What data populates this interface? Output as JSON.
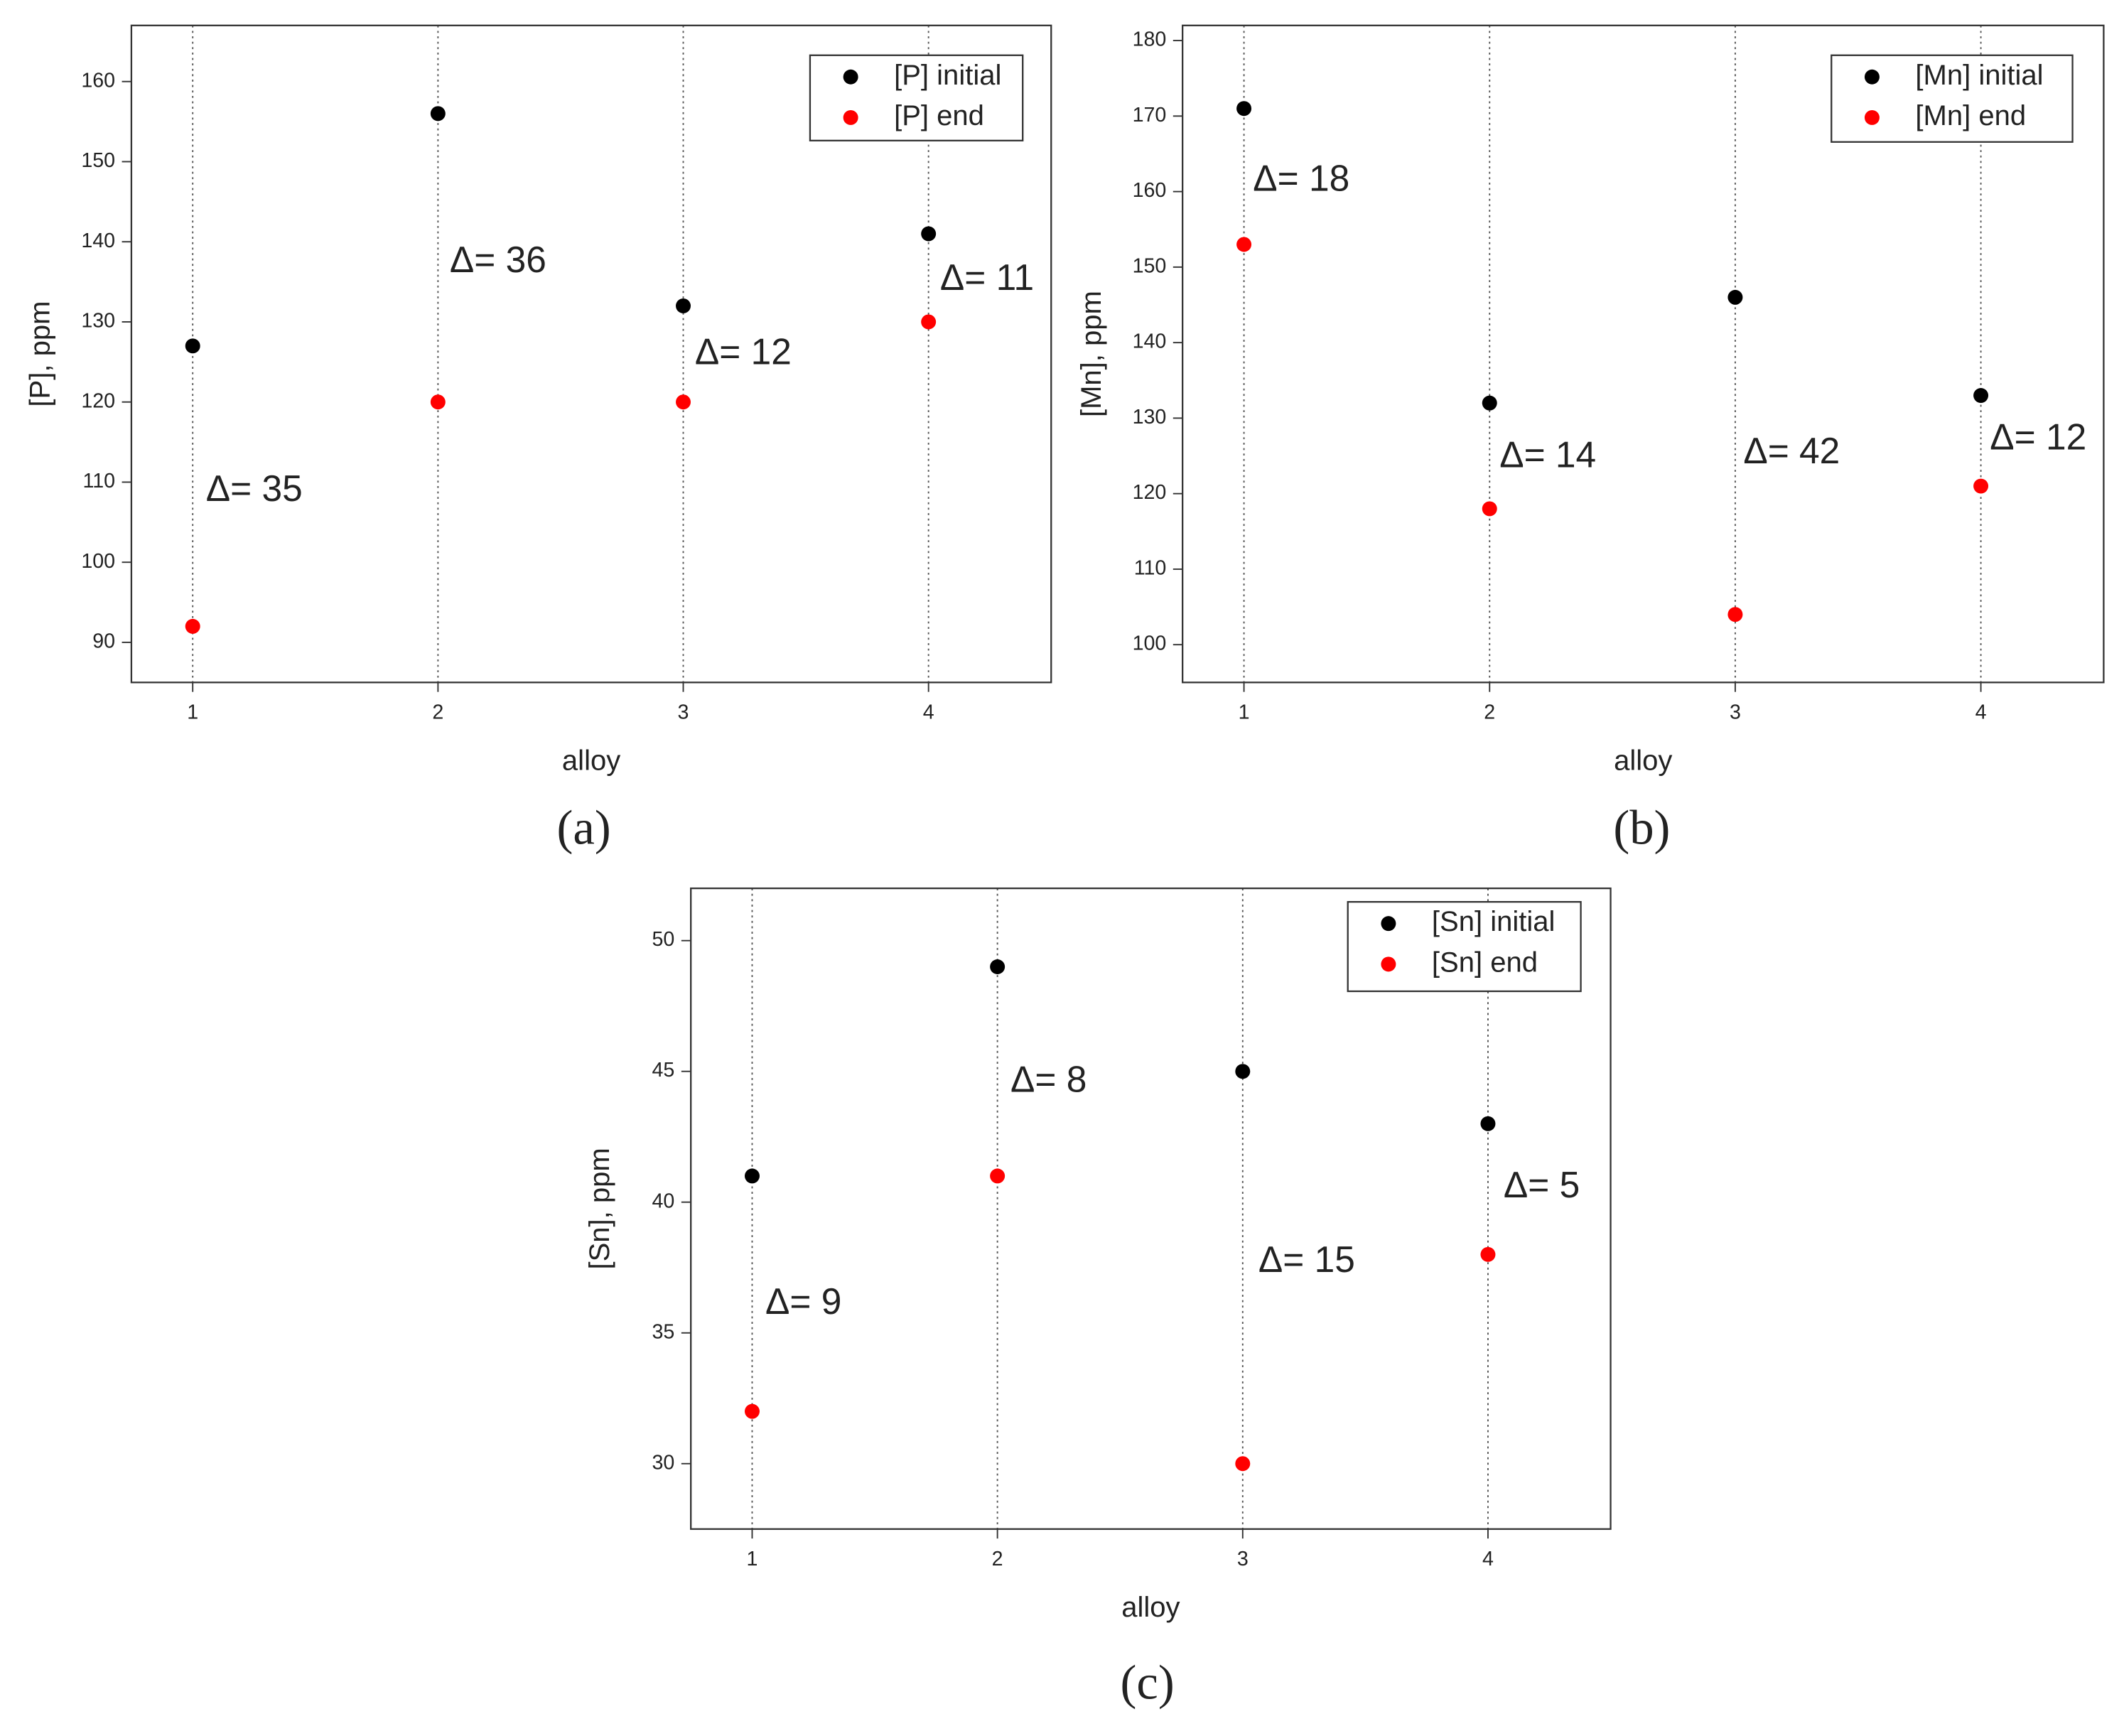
{
  "chart_data": [
    {
      "type": "scatter",
      "caption": "(a)",
      "x_label": "alloy",
      "y_label": "[P], ppm",
      "x": [
        1,
        2,
        3,
        4
      ],
      "xlim": [
        0.75,
        4.5
      ],
      "xticks": [
        1,
        2,
        3,
        4
      ],
      "ylim": [
        85,
        167
      ],
      "yticks": [
        90,
        100,
        110,
        120,
        130,
        140,
        150,
        160
      ],
      "xgrid": true,
      "legend": "top-right",
      "series": [
        {
          "name": "[P] initial",
          "color": "#000000",
          "values": [
            127,
            156,
            132,
            141
          ]
        },
        {
          "name": "[P] end",
          "color": "#ff0000",
          "values": [
            92,
            120,
            120,
            130
          ]
        }
      ],
      "annotations": [
        "Δ= 35",
        "Δ= 36",
        "Δ= 12",
        "Δ= 11"
      ]
    },
    {
      "type": "scatter",
      "caption": "(b)",
      "x_label": "alloy",
      "y_label": "[Mn], ppm",
      "x": [
        1,
        2,
        3,
        4
      ],
      "xlim": [
        0.75,
        4.5
      ],
      "xticks": [
        1,
        2,
        3,
        4
      ],
      "ylim": [
        95,
        182
      ],
      "yticks": [
        100,
        110,
        120,
        130,
        140,
        150,
        160,
        170,
        180
      ],
      "xgrid": true,
      "legend": "top-right",
      "series": [
        {
          "name": "[Mn] initial",
          "color": "#000000",
          "values": [
            171,
            132,
            146,
            133
          ]
        },
        {
          "name": "[Mn] end",
          "color": "#ff0000",
          "values": [
            153,
            118,
            104,
            121
          ]
        }
      ],
      "annotations": [
        "Δ= 18",
        "Δ= 14",
        "Δ= 42",
        "Δ= 12"
      ]
    },
    {
      "type": "scatter",
      "caption": "(c)",
      "x_label": "alloy",
      "y_label": "[Sn], ppm",
      "x": [
        1,
        2,
        3,
        4
      ],
      "xlim": [
        0.75,
        4.5
      ],
      "xticks": [
        1,
        2,
        3,
        4
      ],
      "ylim": [
        27.5,
        52
      ],
      "yticks": [
        30,
        35,
        40,
        45,
        50
      ],
      "xgrid": true,
      "legend": "top-right",
      "series": [
        {
          "name": "[Sn] initial",
          "color": "#000000",
          "values": [
            41,
            49,
            45,
            43
          ]
        },
        {
          "name": "[Sn] end",
          "color": "#ff0000",
          "values": [
            32,
            41,
            30,
            38
          ]
        }
      ],
      "annotations": [
        "Δ= 9",
        "Δ= 8",
        "Δ= 15",
        "Δ= 5"
      ]
    }
  ]
}
